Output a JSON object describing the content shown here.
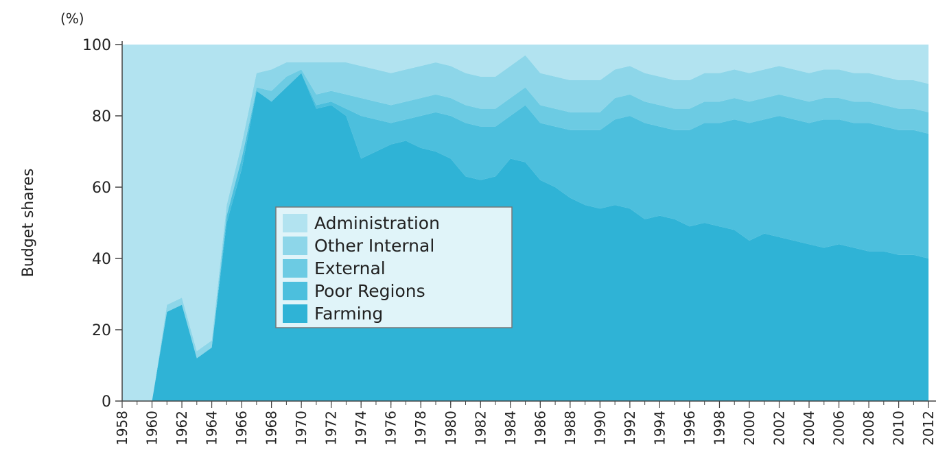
{
  "chart_data": {
    "type": "area",
    "stacked": true,
    "y_unit": "(%)",
    "y_label": "Budget shares",
    "x": [
      1958,
      1959,
      1960,
      1961,
      1962,
      1963,
      1964,
      1965,
      1966,
      1967,
      1968,
      1969,
      1970,
      1971,
      1972,
      1973,
      1974,
      1975,
      1976,
      1977,
      1978,
      1979,
      1980,
      1981,
      1982,
      1983,
      1984,
      1985,
      1986,
      1987,
      1988,
      1989,
      1990,
      1991,
      1992,
      1993,
      1994,
      1995,
      1996,
      1997,
      1998,
      1999,
      2000,
      2001,
      2002,
      2003,
      2004,
      2005,
      2006,
      2007,
      2008,
      2009,
      2010,
      2011,
      2012
    ],
    "xlim": [
      1958,
      2012.5
    ],
    "xticks": [
      1958,
      1960,
      1962,
      1964,
      1966,
      1968,
      1970,
      1972,
      1974,
      1976,
      1978,
      1980,
      1982,
      1984,
      1986,
      1988,
      1990,
      1992,
      1994,
      1996,
      1998,
      2000,
      2002,
      2004,
      2006,
      2008,
      2010,
      2012
    ],
    "ylim": [
      0,
      100
    ],
    "yticks": [
      0,
      20,
      40,
      60,
      80,
      100
    ],
    "legend": "center-left",
    "series": [
      {
        "name": "Farming",
        "color": "#2fb3d6",
        "values": [
          0,
          0,
          0,
          25,
          27,
          12,
          15,
          50,
          65,
          87,
          84,
          88,
          92,
          82,
          83,
          80,
          68,
          70,
          72,
          73,
          71,
          70,
          68,
          63,
          62,
          63,
          68,
          67,
          62,
          60,
          57,
          55,
          54,
          55,
          54,
          51,
          52,
          51,
          49,
          50,
          49,
          48,
          45,
          47,
          46,
          45,
          44,
          43,
          44,
          43,
          42,
          42,
          41,
          41,
          40
        ]
      },
      {
        "name": "Poor Regions",
        "color": "#4cbfdd",
        "values": [
          0,
          0,
          0,
          0,
          0,
          0,
          0,
          2,
          3,
          0,
          0,
          0,
          0,
          1,
          1,
          2,
          12,
          9,
          6,
          6,
          9,
          11,
          12,
          15,
          15,
          14,
          12,
          16,
          16,
          17,
          19,
          21,
          22,
          24,
          26,
          27,
          25,
          25,
          27,
          28,
          29,
          31,
          33,
          32,
          34,
          34,
          34,
          36,
          35,
          35,
          36,
          35,
          35,
          35,
          35
        ]
      },
      {
        "name": "External",
        "color": "#6ccbe3",
        "values": [
          0,
          0,
          0,
          0,
          0,
          0,
          0,
          0,
          0,
          1,
          3,
          3,
          1,
          3,
          3,
          4,
          5,
          5,
          5,
          5,
          5,
          5,
          5,
          5,
          5,
          5,
          5,
          5,
          5,
          5,
          5,
          5,
          5,
          6,
          6,
          6,
          6,
          6,
          6,
          6,
          6,
          6,
          6,
          6,
          6,
          6,
          6,
          6,
          6,
          6,
          6,
          6,
          6,
          6,
          6
        ]
      },
      {
        "name": "Other Internal",
        "color": "#8dd6e9",
        "values": [
          0,
          0,
          0,
          2,
          2,
          2,
          2,
          3,
          4,
          4,
          6,
          4,
          2,
          9,
          8,
          9,
          9,
          9,
          9,
          9,
          9,
          9,
          9,
          9,
          9,
          9,
          9,
          9,
          9,
          9,
          9,
          9,
          9,
          8,
          8,
          8,
          8,
          8,
          8,
          8,
          8,
          8,
          8,
          8,
          8,
          8,
          8,
          8,
          8,
          8,
          8,
          8,
          8,
          8,
          8
        ]
      },
      {
        "name": "Administration",
        "color": "#b2e3f0",
        "values": [
          100,
          100,
          100,
          73,
          71,
          86,
          83,
          45,
          28,
          8,
          7,
          5,
          5,
          5,
          5,
          5,
          6,
          7,
          8,
          7,
          6,
          5,
          6,
          8,
          9,
          9,
          6,
          3,
          8,
          9,
          10,
          10,
          10,
          7,
          6,
          8,
          9,
          10,
          10,
          8,
          8,
          7,
          8,
          7,
          6,
          7,
          8,
          7,
          7,
          8,
          8,
          9,
          10,
          10,
          11
        ]
      }
    ]
  }
}
